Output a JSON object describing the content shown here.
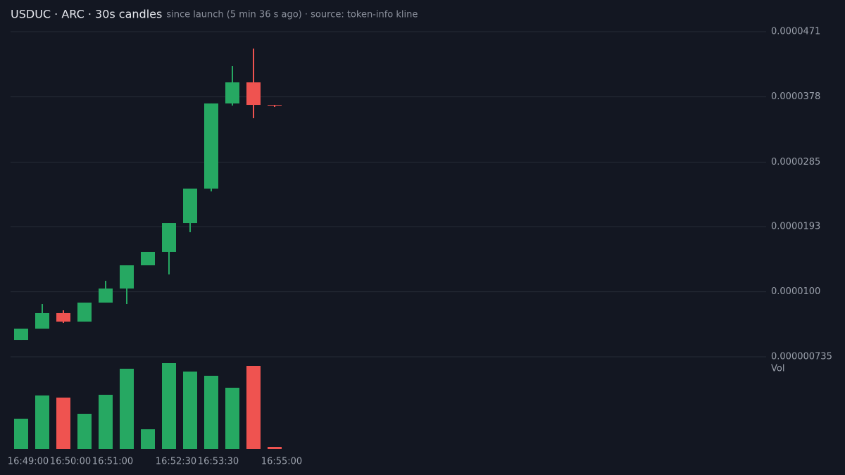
{
  "chart_data": {
    "type": "candlestick",
    "title": "USDUC · ARC · 30s candles",
    "subtitle": "since launch (5 min 36 s ago) · source: token-info kline",
    "categories": [
      "16:49:00",
      null,
      "16:50:00",
      null,
      "16:51:00",
      null,
      null,
      "16:52:30",
      null,
      "16:53:30",
      null,
      null,
      "16:55:00"
    ],
    "open": [
      3.14e-06,
      4.75e-06,
      6.96e-06,
      5.75e-06,
      8.46e-06,
      1.047e-05,
      1.378e-05,
      1.569e-05,
      1.98e-05,
      2.472e-05,
      3.686e-05,
      3.987e-05,
      3.666e-05
    ],
    "high": [
      4.75e-06,
      8.26e-06,
      7.36e-06,
      8.46e-06,
      1.157e-05,
      1.378e-05,
      1.569e-05,
      1.98e-05,
      2.472e-05,
      3.686e-05,
      4.218e-05,
      4.469e-05,
      3.666e-05
    ],
    "low": [
      3.14e-06,
      4.75e-06,
      5.55e-06,
      5.75e-06,
      8.46e-06,
      8.26e-06,
      1.378e-05,
      1.248e-05,
      1.85e-05,
      2.432e-05,
      3.656e-05,
      3.476e-05,
      3.636e-05
    ],
    "close": [
      4.75e-06,
      6.96e-06,
      5.75e-06,
      8.46e-06,
      1.047e-05,
      1.378e-05,
      1.569e-05,
      1.98e-05,
      2.472e-05,
      3.686e-05,
      3.987e-05,
      3.666e-05,
      3.656e-05
    ],
    "volume": [
      43,
      76,
      73,
      50,
      77,
      114,
      28,
      122,
      110,
      104,
      87,
      118,
      3
    ],
    "volume_label": "Vol",
    "ylim": [
      7.35e-07,
      4.71e-05
    ],
    "yticks": [
      {
        "value": 4.71e-05,
        "label": "0.0000471"
      },
      {
        "value": 3.78e-05,
        "label": "0.0000378"
      },
      {
        "value": 2.85e-05,
        "label": "0.0000285"
      },
      {
        "value": 1.93e-05,
        "label": "0.0000193"
      },
      {
        "value": 1e-05,
        "label": "0.0000100"
      },
      {
        "value": 7.35e-07,
        "label": "0.000000735"
      }
    ],
    "grid": true,
    "up_color": "#26a862",
    "down_color": "#ef5350"
  }
}
